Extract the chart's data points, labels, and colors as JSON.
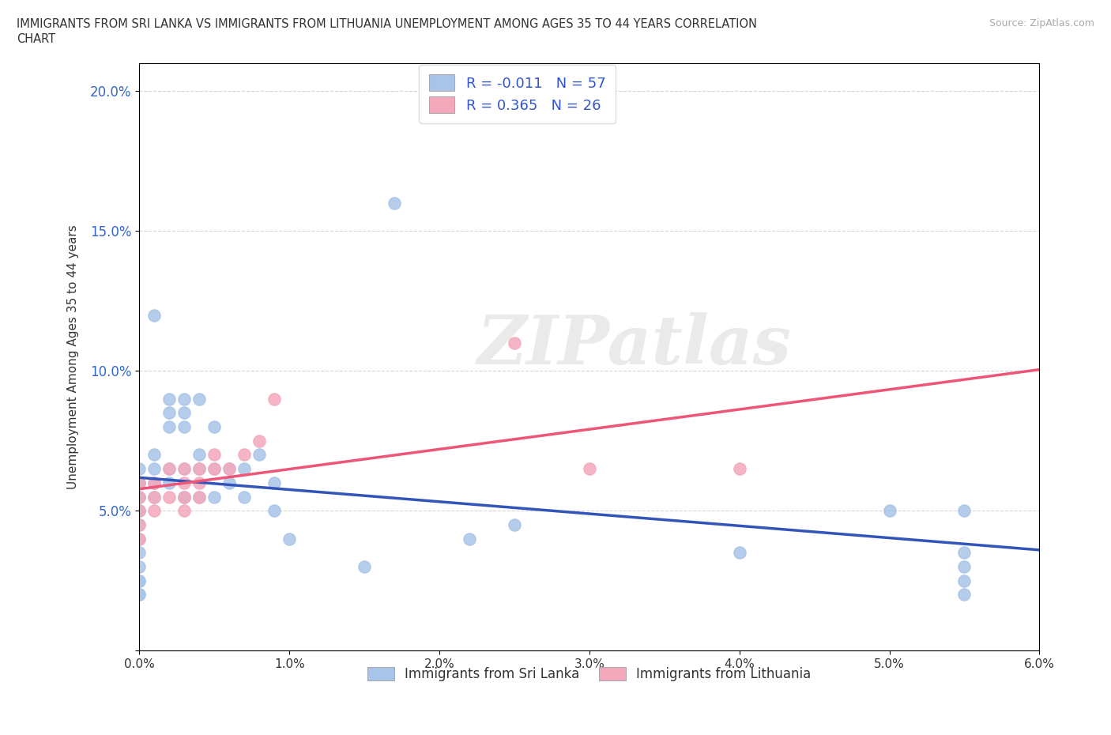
{
  "title_line1": "IMMIGRANTS FROM SRI LANKA VS IMMIGRANTS FROM LITHUANIA UNEMPLOYMENT AMONG AGES 35 TO 44 YEARS CORRELATION",
  "title_line2": "CHART",
  "source_text": "Source: ZipAtlas.com",
  "ylabel_label": "Unemployment Among Ages 35 to 44 years",
  "xlim": [
    0.0,
    0.06
  ],
  "ylim": [
    0.0,
    0.21
  ],
  "xticks": [
    0.0,
    0.01,
    0.02,
    0.03,
    0.04,
    0.05,
    0.06
  ],
  "yticks": [
    0.0,
    0.05,
    0.1,
    0.15,
    0.2
  ],
  "xtick_labels": [
    "0.0%",
    "1.0%",
    "2.0%",
    "3.0%",
    "4.0%",
    "5.0%",
    "6.0%"
  ],
  "ytick_labels": [
    "",
    "5.0%",
    "10.0%",
    "15.0%",
    "20.0%"
  ],
  "sri_lanka_color": "#a8c4e8",
  "lithuania_color": "#f4a8bc",
  "sri_lanka_R": "-0.011",
  "sri_lanka_N": "57",
  "lithuania_R": "0.365",
  "lithuania_N": "26",
  "legend_R_color": "#3355cc",
  "legend_label1": "Immigrants from Sri Lanka",
  "legend_label2": "Immigrants from Lithuania",
  "watermark": "ZIPatlas",
  "sri_lanka_x": [
    0.0,
    0.0,
    0.0,
    0.0,
    0.0,
    0.0,
    0.0,
    0.0,
    0.0,
    0.0,
    0.0,
    0.0,
    0.0,
    0.0,
    0.0,
    0.001,
    0.001,
    0.001,
    0.001,
    0.001,
    0.002,
    0.002,
    0.002,
    0.002,
    0.002,
    0.003,
    0.003,
    0.003,
    0.003,
    0.003,
    0.003,
    0.004,
    0.004,
    0.004,
    0.004,
    0.005,
    0.005,
    0.005,
    0.006,
    0.006,
    0.007,
    0.007,
    0.008,
    0.009,
    0.009,
    0.01,
    0.015,
    0.017,
    0.022,
    0.025,
    0.04,
    0.05,
    0.055,
    0.055,
    0.055,
    0.055,
    0.055
  ],
  "sri_lanka_y": [
    0.055,
    0.06,
    0.065,
    0.05,
    0.055,
    0.045,
    0.04,
    0.035,
    0.03,
    0.025,
    0.025,
    0.02,
    0.02,
    0.05,
    0.06,
    0.12,
    0.07,
    0.065,
    0.06,
    0.055,
    0.08,
    0.085,
    0.09,
    0.065,
    0.06,
    0.085,
    0.09,
    0.08,
    0.065,
    0.055,
    0.055,
    0.09,
    0.07,
    0.065,
    0.055,
    0.08,
    0.065,
    0.055,
    0.065,
    0.06,
    0.065,
    0.055,
    0.07,
    0.06,
    0.05,
    0.04,
    0.03,
    0.16,
    0.04,
    0.045,
    0.035,
    0.05,
    0.05,
    0.035,
    0.03,
    0.025,
    0.02
  ],
  "lithuania_x": [
    0.0,
    0.0,
    0.0,
    0.0,
    0.0,
    0.001,
    0.001,
    0.001,
    0.002,
    0.002,
    0.003,
    0.003,
    0.003,
    0.003,
    0.004,
    0.004,
    0.004,
    0.005,
    0.005,
    0.006,
    0.007,
    0.008,
    0.009,
    0.025,
    0.03,
    0.04
  ],
  "lithuania_y": [
    0.05,
    0.055,
    0.06,
    0.04,
    0.045,
    0.06,
    0.055,
    0.05,
    0.065,
    0.055,
    0.06,
    0.065,
    0.055,
    0.05,
    0.065,
    0.06,
    0.055,
    0.07,
    0.065,
    0.065,
    0.07,
    0.075,
    0.09,
    0.11,
    0.065,
    0.065
  ],
  "background_color": "#ffffff",
  "grid_color": "#cccccc",
  "trendline_sri_lanka_color": "#3355bb",
  "trendline_lithuania_color": "#ee5577"
}
